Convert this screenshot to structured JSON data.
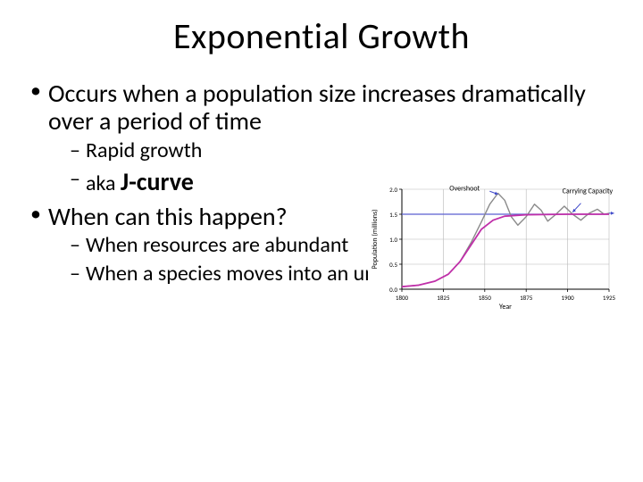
{
  "title": "Exponential Growth",
  "bullets": {
    "b1": "Occurs when a population size increases dramatically over a period of time",
    "b1a": "Rapid growth",
    "b1b_prefix": "aka ",
    "b1b_bold": "J-curve",
    "b2": "When can this happen?",
    "b2a": "When resources are abundant",
    "b2b": "When a species moves into an uninhabited area"
  },
  "chart": {
    "type": "line",
    "title_fontsize": 8,
    "label_fontsize": 8,
    "tick_fontsize": 7,
    "background_color": "#ffffff",
    "axis_color": "#000000",
    "grid_color": "#b8b8b8",
    "ylabel": "Population (millions)",
    "xlabel": "Year",
    "xlim": [
      1800,
      1925
    ],
    "ylim": [
      0,
      2.0
    ],
    "xticks": [
      1800,
      1825,
      1850,
      1875,
      1900,
      1925
    ],
    "yticks": [
      0,
      0.5,
      1.0,
      1.5,
      2.0
    ],
    "annotations": {
      "overshoot": "Overshoot",
      "carrying": "Carrying Capacity"
    },
    "carrying_capacity": {
      "y": 1.5,
      "color": "#5a5fd0",
      "width": 1.2
    },
    "series_logistic": {
      "color": "#c02fa9",
      "width": 1.8,
      "points": [
        [
          1800,
          0.05
        ],
        [
          1810,
          0.08
        ],
        [
          1820,
          0.16
        ],
        [
          1828,
          0.3
        ],
        [
          1835,
          0.55
        ],
        [
          1842,
          0.9
        ],
        [
          1848,
          1.2
        ],
        [
          1855,
          1.38
        ],
        [
          1862,
          1.46
        ],
        [
          1875,
          1.49
        ],
        [
          1900,
          1.5
        ],
        [
          1925,
          1.5
        ]
      ]
    },
    "series_oscillating": {
      "color": "#8a8a8a",
      "width": 1.4,
      "points": [
        [
          1800,
          0.05
        ],
        [
          1810,
          0.08
        ],
        [
          1820,
          0.16
        ],
        [
          1828,
          0.3
        ],
        [
          1835,
          0.55
        ],
        [
          1842,
          0.95
        ],
        [
          1848,
          1.35
        ],
        [
          1853,
          1.7
        ],
        [
          1858,
          1.92
        ],
        [
          1862,
          1.78
        ],
        [
          1866,
          1.45
        ],
        [
          1870,
          1.28
        ],
        [
          1875,
          1.45
        ],
        [
          1880,
          1.7
        ],
        [
          1884,
          1.58
        ],
        [
          1888,
          1.36
        ],
        [
          1893,
          1.5
        ],
        [
          1898,
          1.66
        ],
        [
          1903,
          1.5
        ],
        [
          1908,
          1.38
        ],
        [
          1913,
          1.52
        ],
        [
          1918,
          1.6
        ],
        [
          1922,
          1.5
        ],
        [
          1925,
          1.52
        ]
      ]
    },
    "arrows": {
      "overshoot_from": [
        1853,
        1.96
      ],
      "overshoot_to": [
        1858,
        1.9
      ],
      "carrying_from": [
        1908,
        1.72
      ],
      "carrying_to": [
        1903,
        1.54
      ],
      "end_arrow_to": [
        1928,
        1.52
      ],
      "color": "#3e48c9"
    }
  }
}
